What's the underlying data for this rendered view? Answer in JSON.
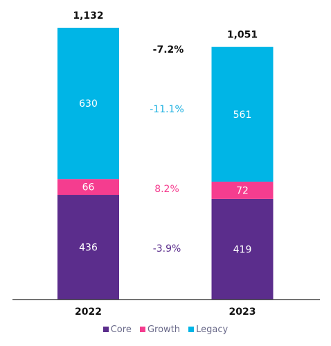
{
  "chart_data": {
    "type": "bar",
    "stacked": true,
    "categories": [
      "2022",
      "2023"
    ],
    "series": [
      {
        "name": "Core",
        "color": "#5b2d8c",
        "values": [
          436,
          419
        ]
      },
      {
        "name": "Growth",
        "color": "#f53d8f",
        "values": [
          66,
          72
        ]
      },
      {
        "name": "Legacy",
        "color": "#00b5e6",
        "values": [
          630,
          561
        ]
      }
    ],
    "totals": [
      "1,132",
      "1,051"
    ],
    "total_change": {
      "label": "-7.2%",
      "color": "#111111"
    },
    "series_changes": [
      {
        "series": "Core",
        "label": "-3.9%",
        "color": "#5b2d8c"
      },
      {
        "series": "Growth",
        "label": "8.2%",
        "color": "#f53d8f"
      },
      {
        "series": "Legacy",
        "label": "-11.1%",
        "color": "#1bb0e0"
      }
    ],
    "legend_position": "bottom-center",
    "grid": false
  }
}
